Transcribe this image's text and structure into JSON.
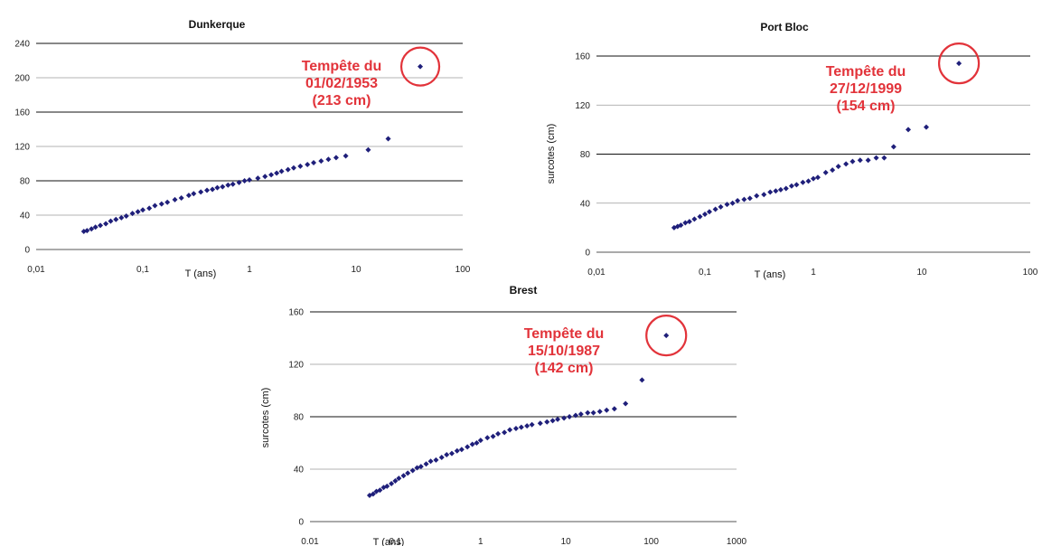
{
  "chart_data": [
    {
      "type": "scatter",
      "title": "Dunkerque",
      "xlabel": "T (ans)",
      "ylabel": "",
      "xscale": "log",
      "xlim": [
        0.01,
        100
      ],
      "ylim": [
        0,
        240
      ],
      "xticks": [
        0.01,
        0.1,
        1,
        10,
        100
      ],
      "xtick_labels": [
        "0,01",
        "0,1",
        "1",
        "10",
        "100"
      ],
      "yticks": [
        0,
        40,
        80,
        120,
        160,
        200,
        240
      ],
      "ytick_labels": [
        "0",
        "40",
        "80",
        "120",
        "160",
        "200",
        "240"
      ],
      "grid": "horizontal",
      "marker_color": "#1f1f7a",
      "points": [
        [
          0.028,
          21
        ],
        [
          0.03,
          22
        ],
        [
          0.033,
          24
        ],
        [
          0.036,
          26
        ],
        [
          0.04,
          28
        ],
        [
          0.045,
          30
        ],
        [
          0.05,
          33
        ],
        [
          0.056,
          35
        ],
        [
          0.063,
          37
        ],
        [
          0.07,
          39
        ],
        [
          0.08,
          42
        ],
        [
          0.09,
          44
        ],
        [
          0.1,
          46
        ],
        [
          0.115,
          48
        ],
        [
          0.13,
          51
        ],
        [
          0.15,
          53
        ],
        [
          0.17,
          55
        ],
        [
          0.2,
          58
        ],
        [
          0.23,
          60
        ],
        [
          0.27,
          63
        ],
        [
          0.3,
          65
        ],
        [
          0.35,
          67
        ],
        [
          0.4,
          69
        ],
        [
          0.45,
          70
        ],
        [
          0.5,
          72
        ],
        [
          0.56,
          73
        ],
        [
          0.63,
          75
        ],
        [
          0.7,
          76
        ],
        [
          0.8,
          78
        ],
        [
          0.9,
          80
        ],
        [
          1.0,
          81
        ],
        [
          1.2,
          83
        ],
        [
          1.4,
          85
        ],
        [
          1.6,
          87
        ],
        [
          1.8,
          89
        ],
        [
          2.0,
          91
        ],
        [
          2.3,
          93
        ],
        [
          2.6,
          95
        ],
        [
          3.0,
          97
        ],
        [
          3.5,
          99
        ],
        [
          4.0,
          101
        ],
        [
          4.7,
          103
        ],
        [
          5.5,
          105
        ],
        [
          6.5,
          107
        ],
        [
          8.0,
          109
        ],
        [
          13,
          116
        ],
        [
          20,
          129
        ],
        [
          40,
          213
        ]
      ],
      "annotation": {
        "lines": [
          "Tempête du",
          "01/02/1953",
          "(213 cm)"
        ],
        "color": "#e2333a",
        "target": [
          40,
          213
        ]
      }
    },
    {
      "type": "scatter",
      "title": "Port Bloc",
      "xlabel": "T (ans)",
      "ylabel": "surcotes (cm)",
      "xscale": "log",
      "xlim": [
        0.01,
        100
      ],
      "ylim": [
        0,
        160
      ],
      "xticks": [
        0.01,
        0.1,
        1,
        10,
        100
      ],
      "xtick_labels": [
        "0,01",
        "0,1",
        "1",
        "10",
        "100"
      ],
      "yticks": [
        0,
        40,
        80,
        120,
        160
      ],
      "ytick_labels": [
        "0",
        "40",
        "80",
        "120",
        "160"
      ],
      "grid": "horizontal",
      "marker_color": "#1f1f7a",
      "points": [
        [
          0.052,
          20
        ],
        [
          0.056,
          21
        ],
        [
          0.06,
          22
        ],
        [
          0.066,
          24
        ],
        [
          0.072,
          25
        ],
        [
          0.08,
          27
        ],
        [
          0.09,
          29
        ],
        [
          0.1,
          31
        ],
        [
          0.11,
          33
        ],
        [
          0.125,
          35
        ],
        [
          0.14,
          37
        ],
        [
          0.16,
          39
        ],
        [
          0.18,
          40
        ],
        [
          0.2,
          42
        ],
        [
          0.23,
          43
        ],
        [
          0.26,
          44
        ],
        [
          0.3,
          46
        ],
        [
          0.35,
          47
        ],
        [
          0.4,
          49
        ],
        [
          0.45,
          50
        ],
        [
          0.5,
          51
        ],
        [
          0.56,
          52
        ],
        [
          0.63,
          54
        ],
        [
          0.7,
          55
        ],
        [
          0.8,
          57
        ],
        [
          0.9,
          58
        ],
        [
          1.0,
          60
        ],
        [
          1.1,
          61
        ],
        [
          1.3,
          65
        ],
        [
          1.5,
          67
        ],
        [
          1.7,
          70
        ],
        [
          2.0,
          72
        ],
        [
          2.3,
          74
        ],
        [
          2.7,
          75
        ],
        [
          3.2,
          75
        ],
        [
          3.8,
          77
        ],
        [
          4.5,
          77
        ],
        [
          5.5,
          86
        ],
        [
          7.5,
          100
        ],
        [
          11,
          102
        ],
        [
          22,
          154
        ]
      ],
      "annotation": {
        "lines": [
          "Tempête du",
          "27/12/1999",
          "(154 cm)"
        ],
        "color": "#e2333a",
        "target": [
          22,
          154
        ]
      }
    },
    {
      "type": "scatter",
      "title": "Brest",
      "xlabel": "T (ans)",
      "ylabel": "surcotes (cm)",
      "xscale": "log",
      "xlim": [
        0.01,
        1000
      ],
      "ylim": [
        0,
        160
      ],
      "xticks": [
        0.01,
        0.1,
        1,
        10,
        100,
        1000
      ],
      "xtick_labels": [
        "0.01",
        "0.1",
        "1",
        "10",
        "100",
        "1000"
      ],
      "yticks": [
        0,
        40,
        80,
        120,
        160
      ],
      "ytick_labels": [
        "0",
        "40",
        "80",
        "120",
        "160"
      ],
      "grid": "horizontal",
      "marker_color": "#1f1f7a",
      "points": [
        [
          0.05,
          20
        ],
        [
          0.055,
          21
        ],
        [
          0.06,
          23
        ],
        [
          0.066,
          24
        ],
        [
          0.073,
          26
        ],
        [
          0.08,
          27
        ],
        [
          0.09,
          29
        ],
        [
          0.1,
          31
        ],
        [
          0.11,
          33
        ],
        [
          0.125,
          35
        ],
        [
          0.14,
          37
        ],
        [
          0.16,
          39
        ],
        [
          0.18,
          41
        ],
        [
          0.2,
          42
        ],
        [
          0.23,
          44
        ],
        [
          0.26,
          46
        ],
        [
          0.3,
          47
        ],
        [
          0.35,
          49
        ],
        [
          0.4,
          51
        ],
        [
          0.46,
          52
        ],
        [
          0.53,
          54
        ],
        [
          0.6,
          55
        ],
        [
          0.7,
          57
        ],
        [
          0.8,
          59
        ],
        [
          0.9,
          60
        ],
        [
          1.0,
          62
        ],
        [
          1.2,
          64
        ],
        [
          1.4,
          65
        ],
        [
          1.6,
          67
        ],
        [
          1.9,
          68
        ],
        [
          2.2,
          70
        ],
        [
          2.6,
          71
        ],
        [
          3.0,
          72
        ],
        [
          3.5,
          73
        ],
        [
          4.0,
          74
        ],
        [
          5.0,
          75
        ],
        [
          6.0,
          76
        ],
        [
          7.0,
          77
        ],
        [
          8.0,
          78
        ],
        [
          9.5,
          79
        ],
        [
          11,
          80
        ],
        [
          13,
          81
        ],
        [
          15,
          82
        ],
        [
          18,
          83
        ],
        [
          21,
          83
        ],
        [
          25,
          84
        ],
        [
          30,
          85
        ],
        [
          37,
          86
        ],
        [
          50,
          90
        ],
        [
          78,
          108
        ],
        [
          150,
          142
        ]
      ],
      "annotation": {
        "lines": [
          "Tempête du",
          "15/10/1987",
          "(142 cm)"
        ],
        "color": "#e2333a",
        "target": [
          150,
          142
        ]
      }
    }
  ]
}
